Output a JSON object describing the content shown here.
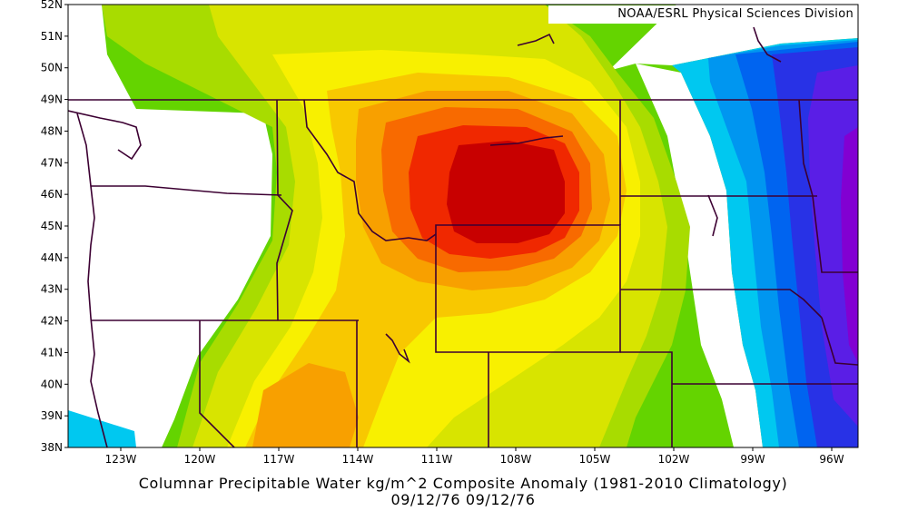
{
  "map": {
    "credit": "NOAA/ESRL Physical Sciences Division",
    "title_line1": "Columnar Precipitable Water kg/m^2 Composite Anomaly (1981-2010 Climatology)",
    "title_line2": "09/12/76 09/12/76",
    "lat_labels": [
      "38N",
      "39N",
      "40N",
      "41N",
      "42N",
      "43N",
      "44N",
      "45N",
      "46N",
      "47N",
      "48N",
      "49N",
      "50N",
      "51N",
      "52N"
    ],
    "lon_labels": [
      "123W",
      "120W",
      "117W",
      "114W",
      "111W",
      "108W",
      "105W",
      "102W",
      "99W",
      "96W"
    ],
    "lat_range": [
      38,
      52
    ],
    "lon_range": [
      -125,
      -95
    ],
    "colors": {
      "max": "#c80000",
      "red": "#f02800",
      "orange_red": "#f86a00",
      "orange": "#f8a000",
      "light_orange": "#f8c800",
      "yellow": "#f8f000",
      "yellow_green": "#d8e400",
      "light_green": "#a8dc00",
      "green": "#64d400",
      "cyan": "#00c8f0",
      "light_blue": "#0096f0",
      "blue": "#0064f0",
      "dark_blue": "#2832e6",
      "indigo": "#5a1ee6",
      "purple": "#8200d2",
      "border": "#3c0032"
    }
  }
}
